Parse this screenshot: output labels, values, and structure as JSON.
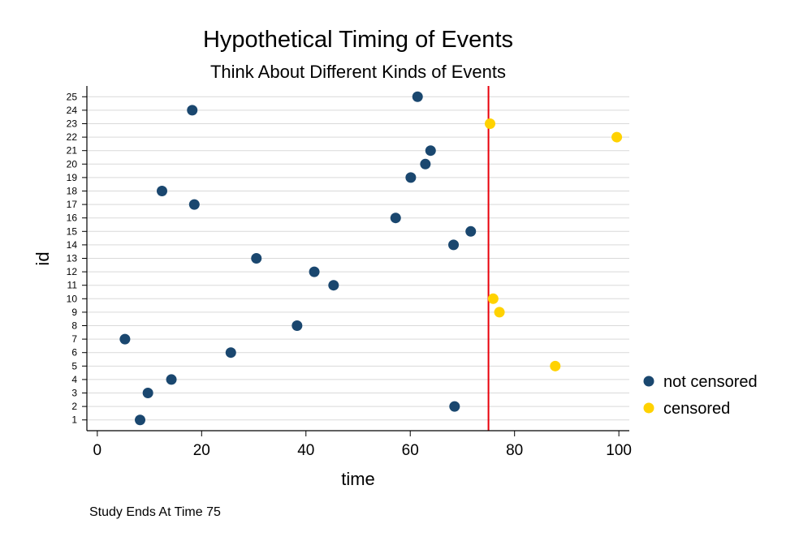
{
  "chart_data": {
    "type": "scatter",
    "title": "Hypothetical Timing of Events",
    "subtitle": "Think About Different Kinds of Events",
    "xlabel": "time",
    "ylabel": "id",
    "xlim": [
      -2,
      102
    ],
    "ylim": [
      0.2,
      25.8
    ],
    "xticks": [
      "0",
      "20",
      "40",
      "60",
      "80",
      "100"
    ],
    "xtick_values": [
      0,
      20,
      40,
      60,
      80,
      100
    ],
    "yticks": [
      "1",
      "2",
      "3",
      "4",
      "5",
      "6",
      "7",
      "8",
      "9",
      "10",
      "11",
      "12",
      "13",
      "14",
      "15",
      "16",
      "17",
      "18",
      "19",
      "20",
      "21",
      "22",
      "23",
      "24",
      "25"
    ],
    "ytick_values": [
      1,
      2,
      3,
      4,
      5,
      6,
      7,
      8,
      9,
      10,
      11,
      12,
      13,
      14,
      15,
      16,
      17,
      18,
      19,
      20,
      21,
      22,
      23,
      24,
      25
    ],
    "grid": true,
    "legend_position": "right",
    "reference_line": {
      "x": 75,
      "color": "#e8000b"
    },
    "note": "Study Ends At Time 75",
    "series": [
      {
        "name": "not censored",
        "color": "#1a476f",
        "points": [
          {
            "x": 8.2,
            "y": 1
          },
          {
            "x": 68.5,
            "y": 2
          },
          {
            "x": 9.7,
            "y": 3
          },
          {
            "x": 14.2,
            "y": 4
          },
          {
            "x": 25.6,
            "y": 6
          },
          {
            "x": 5.3,
            "y": 7
          },
          {
            "x": 38.3,
            "y": 8
          },
          {
            "x": 45.3,
            "y": 11
          },
          {
            "x": 41.6,
            "y": 12
          },
          {
            "x": 30.5,
            "y": 13
          },
          {
            "x": 68.3,
            "y": 14
          },
          {
            "x": 71.6,
            "y": 15
          },
          {
            "x": 57.2,
            "y": 16
          },
          {
            "x": 18.6,
            "y": 17
          },
          {
            "x": 12.4,
            "y": 18
          },
          {
            "x": 60.1,
            "y": 19
          },
          {
            "x": 62.9,
            "y": 20
          },
          {
            "x": 63.9,
            "y": 21
          },
          {
            "x": 18.2,
            "y": 24
          },
          {
            "x": 61.4,
            "y": 25
          }
        ]
      },
      {
        "name": "censored",
        "color": "#ffd200",
        "points": [
          {
            "x": 87.8,
            "y": 5
          },
          {
            "x": 77.1,
            "y": 9
          },
          {
            "x": 75.9,
            "y": 10
          },
          {
            "x": 99.6,
            "y": 22
          },
          {
            "x": 75.3,
            "y": 23
          }
        ]
      }
    ]
  }
}
